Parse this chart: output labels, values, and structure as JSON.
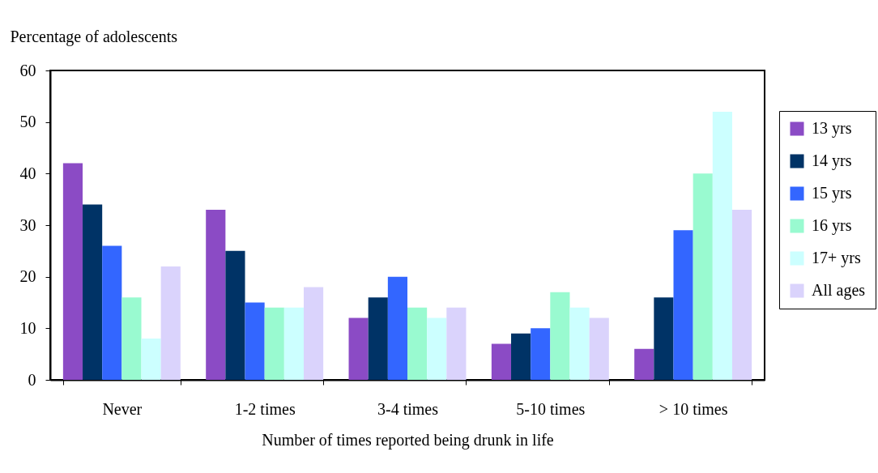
{
  "chart_data": {
    "type": "bar",
    "xlabel": "Number of times reported being drunk in life",
    "ylabel": "Percentage of adolescents",
    "categories": [
      "Never",
      "1-2 times",
      "3-4 times",
      "5-10 times",
      "> 10 times"
    ],
    "series": [
      {
        "name": "13 yrs",
        "color": "#8b4bc5",
        "values": [
          42,
          33,
          12,
          7,
          6
        ]
      },
      {
        "name": "14 yrs",
        "color": "#003366",
        "values": [
          34,
          25,
          16,
          9,
          16
        ]
      },
      {
        "name": "15 yrs",
        "color": "#3366ff",
        "values": [
          26,
          15,
          20,
          10,
          29
        ]
      },
      {
        "name": "16 yrs",
        "color": "#99fad0",
        "values": [
          16,
          14,
          14,
          17,
          40
        ]
      },
      {
        "name": "17+ yrs",
        "color": "#ccffff",
        "values": [
          8,
          14,
          12,
          14,
          52
        ]
      },
      {
        "name": "All ages",
        "color": "#dad3fc",
        "values": [
          22,
          18,
          14,
          12,
          33
        ]
      }
    ],
    "ylim": [
      0,
      60
    ],
    "yticks": [
      0,
      10,
      20,
      30,
      40,
      50,
      60
    ],
    "legend": "right"
  }
}
